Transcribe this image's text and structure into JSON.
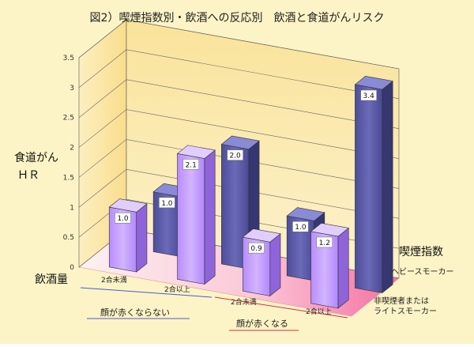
{
  "chart_data": {
    "type": "bar",
    "title": "図2）喫煙指数別・飲酒への反応別　飲酒と食道がんリスク",
    "ylabel_line1": "食道がん",
    "ylabel_line2": "ＨＲ",
    "ylim": [
      0,
      3.5
    ],
    "yticks": [
      "0",
      "0.5",
      "1",
      "1.5",
      "2",
      "2.5",
      "3",
      "3.5"
    ],
    "x_axis_title": "飲酒量",
    "depth_axis_title": "喫煙指数",
    "categories": [
      "2合未満",
      "2合以上",
      "2合未満",
      "2合以上"
    ],
    "groups": [
      {
        "label": "顔が赤くならない",
        "line_color": "#4a5bd0"
      },
      {
        "label": "顔が赤くなる",
        "line_color": "#d0304a"
      }
    ],
    "series": [
      {
        "name": "非喫煙者または\nライトスモーカー",
        "name_line1": "非喫煙者または",
        "name_line2": "ライトスモーカー",
        "color": "#c39bff",
        "values": [
          1.0,
          2.1,
          0.9,
          1.2
        ],
        "labels": [
          "1.0",
          "2.1",
          "0.9",
          "1.2"
        ]
      },
      {
        "name": "ヘビースモーカー",
        "color": "#5a5aa8",
        "values": [
          1.0,
          2.0,
          1.0,
          3.4
        ],
        "labels": [
          "1.0",
          "2.0",
          "1.0",
          "3.4"
        ]
      }
    ],
    "colors": {
      "background": "#fcf4c6",
      "back_wall_top": "#fbe79a",
      "side_wall": "#fbdd86",
      "floor_left": "#fde6ef",
      "floor_right": "#f78ab3"
    }
  }
}
